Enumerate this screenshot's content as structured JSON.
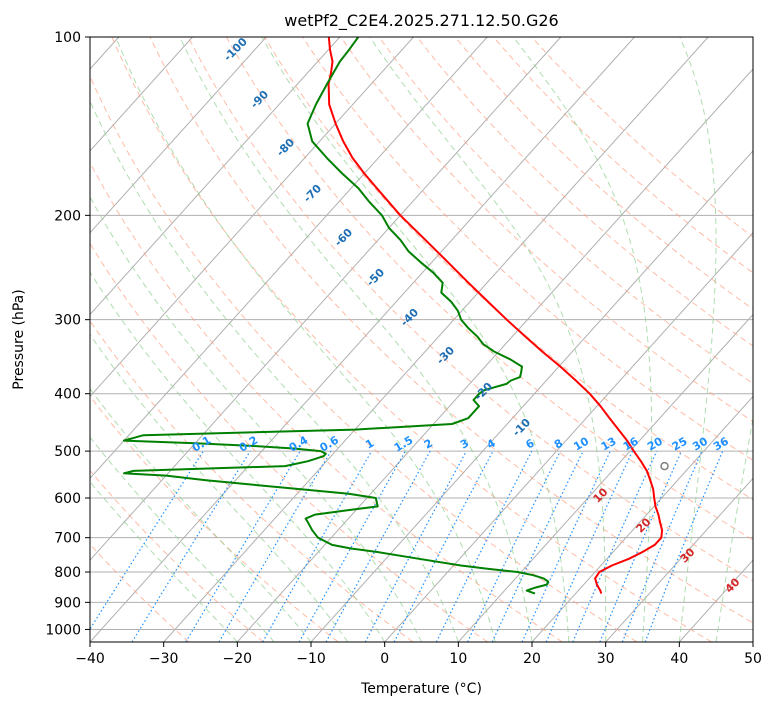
{
  "chart_data": {
    "type": "skew-t log-p",
    "title": "wetPf2_C2E4.2025.271.12.50.G26",
    "xlabel": "Temperature (°C)",
    "ylabel": "Pressure (hPa)",
    "xlim": [
      -40,
      50
    ],
    "ylim_hpa": [
      1050,
      100
    ],
    "y_scale": "log",
    "grid": true,
    "x_ticks": [
      -40,
      -30,
      -20,
      -10,
      0,
      10,
      20,
      30,
      40,
      50
    ],
    "y_ticks": [
      100,
      200,
      300,
      400,
      500,
      600,
      700,
      800,
      900,
      1000
    ],
    "colors": {
      "temperature": "#ff0000",
      "dewpoint": "#008000",
      "isotherms": "#b0b0b0",
      "dry_adiabats": "#ff9f80",
      "moist_adiabats": "#8fcf8f",
      "mixing_ratio": "#1e90ff",
      "grid": "#b0b0b0"
    },
    "series": [
      {
        "name": "Temperature",
        "p": [
          870,
          860,
          840,
          820,
          800,
          780,
          760,
          740,
          720,
          700,
          680,
          660,
          640,
          620,
          600,
          580,
          560,
          540,
          520,
          500,
          480,
          460,
          440,
          420,
          400,
          380,
          360,
          340,
          320,
          300,
          280,
          260,
          240,
          220,
          200,
          180,
          170,
          160,
          150,
          140,
          130,
          120,
          115,
          110,
          105,
          100
        ],
        "t": [
          23.5,
          23.0,
          21.8,
          20.8,
          20.6,
          21.5,
          23.0,
          24.0,
          24.8,
          24.8,
          24.0,
          22.8,
          21.6,
          20.2,
          19.0,
          17.8,
          16.3,
          14.7,
          12.7,
          10.5,
          8.3,
          5.8,
          3.2,
          0.5,
          -2.5,
          -6.0,
          -9.8,
          -14.0,
          -18.3,
          -22.8,
          -27.5,
          -32.5,
          -37.8,
          -43.6,
          -50.0,
          -56.5,
          -60.0,
          -63.5,
          -66.8,
          -70.0,
          -73.2,
          -75.8,
          -76.8,
          -78.0,
          -79.8,
          -81.5
        ]
      },
      {
        "name": "Dewpoint",
        "p": [
          870,
          860,
          850,
          840,
          830,
          820,
          810,
          800,
          790,
          780,
          760,
          740,
          730,
          720,
          700,
          680,
          660,
          650,
          640,
          630,
          620,
          600,
          590,
          580,
          570,
          560,
          550,
          545,
          540,
          530,
          520,
          510,
          505,
          500,
          495,
          490,
          485,
          480,
          470,
          460,
          450,
          440,
          430,
          420,
          410,
          400,
          395,
          390,
          385,
          380,
          375,
          370,
          360,
          350,
          340,
          330,
          320,
          310,
          300,
          290,
          280,
          270,
          260,
          250,
          240,
          230,
          220,
          210,
          200,
          190,
          180,
          170,
          160,
          150,
          140,
          130,
          120,
          115,
          110,
          105,
          100
        ],
        "td": [
          14.5,
          13.0,
          13.8,
          15.0,
          14.8,
          13.8,
          12.0,
          9.5,
          5.0,
          1.0,
          -5.5,
          -12.0,
          -16.0,
          -19.0,
          -21.8,
          -23.5,
          -25.0,
          -25.8,
          -25.0,
          -21.5,
          -17.5,
          -18.8,
          -23.0,
          -30.0,
          -37.0,
          -44.0,
          -50.0,
          -56.0,
          -55.0,
          -35.0,
          -32.5,
          -31.0,
          -31.0,
          -32.0,
          -36.0,
          -42.0,
          -50.0,
          -60.0,
          -58.0,
          -30.0,
          -17.5,
          -16.0,
          -16.0,
          -16.0,
          -17.5,
          -17.5,
          -17.3,
          -16.2,
          -15.0,
          -14.8,
          -14.0,
          -14.3,
          -15.0,
          -17.5,
          -20.5,
          -23.0,
          -24.8,
          -27.0,
          -29.0,
          -30.5,
          -32.5,
          -35.0,
          -36.0,
          -38.5,
          -41.5,
          -44.5,
          -47.0,
          -50.0,
          -52.5,
          -55.8,
          -59.0,
          -63.0,
          -67.0,
          -71.0,
          -73.8,
          -75.0,
          -76.0,
          -76.5,
          -77.0,
          -77.2,
          -77.5
        ]
      }
    ],
    "lcl_marker": {
      "p": 530,
      "t": 16.5
    },
    "dry_adiabat_labels": [
      "-100",
      "-90",
      "-80",
      "-70",
      "-60",
      "-50",
      "-40",
      "-30",
      "-20",
      "-10"
    ],
    "moist_adiabat_labels": [
      "10",
      "20",
      "30",
      "40"
    ],
    "mixing_ratio_labels": [
      "0.1",
      "0.2",
      "0.4",
      "0.6",
      "1",
      "1.5",
      "2",
      "3",
      "4",
      "6",
      "8",
      "10",
      "13",
      "16",
      "20",
      "25",
      "30",
      "36"
    ]
  }
}
